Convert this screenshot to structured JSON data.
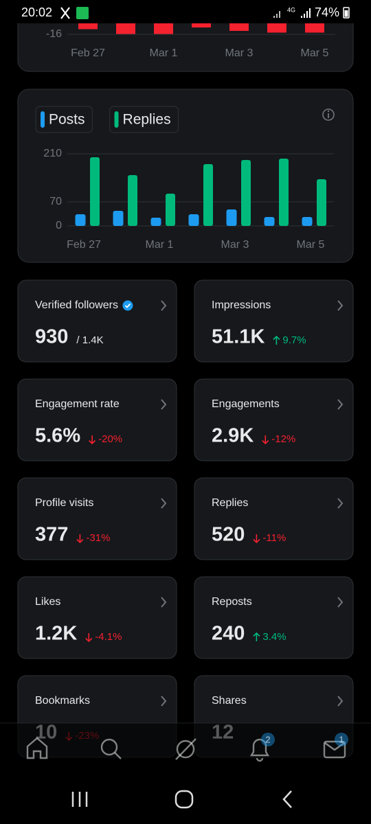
{
  "status_bar": {
    "time": "20:02",
    "battery": "74%",
    "network": "4G"
  },
  "chart_data": [
    {
      "type": "bar",
      "categories": [
        "Feb 27",
        null,
        "Mar 1",
        null,
        "Mar 3",
        null,
        "Mar 5"
      ],
      "values": [
        -13,
        -16,
        -16,
        -12,
        -14,
        -15,
        -15
      ],
      "color": "#f4212e",
      "ylim": [
        -16,
        0
      ],
      "yticks": [
        -16
      ],
      "grid": true
    },
    {
      "type": "grouped_bar",
      "categories": [
        "Feb 27",
        null,
        "Mar 1",
        null,
        "Mar 3",
        null,
        "Mar 5"
      ],
      "series": [
        {
          "name": "Posts",
          "color": "#1d9bf0",
          "values": [
            34,
            44,
            24,
            34,
            48,
            26,
            26
          ]
        },
        {
          "name": "Replies",
          "color": "#00ba7c",
          "values": [
            200,
            148,
            94,
            180,
            192,
            196,
            136
          ]
        }
      ],
      "ylim": [
        0,
        210
      ],
      "yticks": [
        0,
        70,
        210
      ],
      "grid": true,
      "legend": "top-left"
    }
  ],
  "cards": [
    {
      "title": "Verified followers",
      "value": "930",
      "suffix": "/ 1.4K",
      "verified": true
    },
    {
      "title": "Impressions",
      "value": "51.1K",
      "change": "9.7%",
      "direction": "up"
    },
    {
      "title": "Engagement rate",
      "value": "5.6%",
      "change": "-20%",
      "direction": "down"
    },
    {
      "title": "Engagements",
      "value": "2.9K",
      "change": "-12%",
      "direction": "down"
    },
    {
      "title": "Profile visits",
      "value": "377",
      "change": "-31%",
      "direction": "down"
    },
    {
      "title": "Replies",
      "value": "520",
      "change": "-11%",
      "direction": "down"
    },
    {
      "title": "Likes",
      "value": "1.2K",
      "change": "-4.1%",
      "direction": "down"
    },
    {
      "title": "Reposts",
      "value": "240",
      "change": "3.4%",
      "direction": "up"
    },
    {
      "title": "Bookmarks",
      "value": "10",
      "change": "-23%",
      "direction": "down"
    },
    {
      "title": "Shares",
      "value": "12"
    }
  ],
  "nav": {
    "badges": {
      "notifications": "2",
      "messages": "1"
    }
  }
}
